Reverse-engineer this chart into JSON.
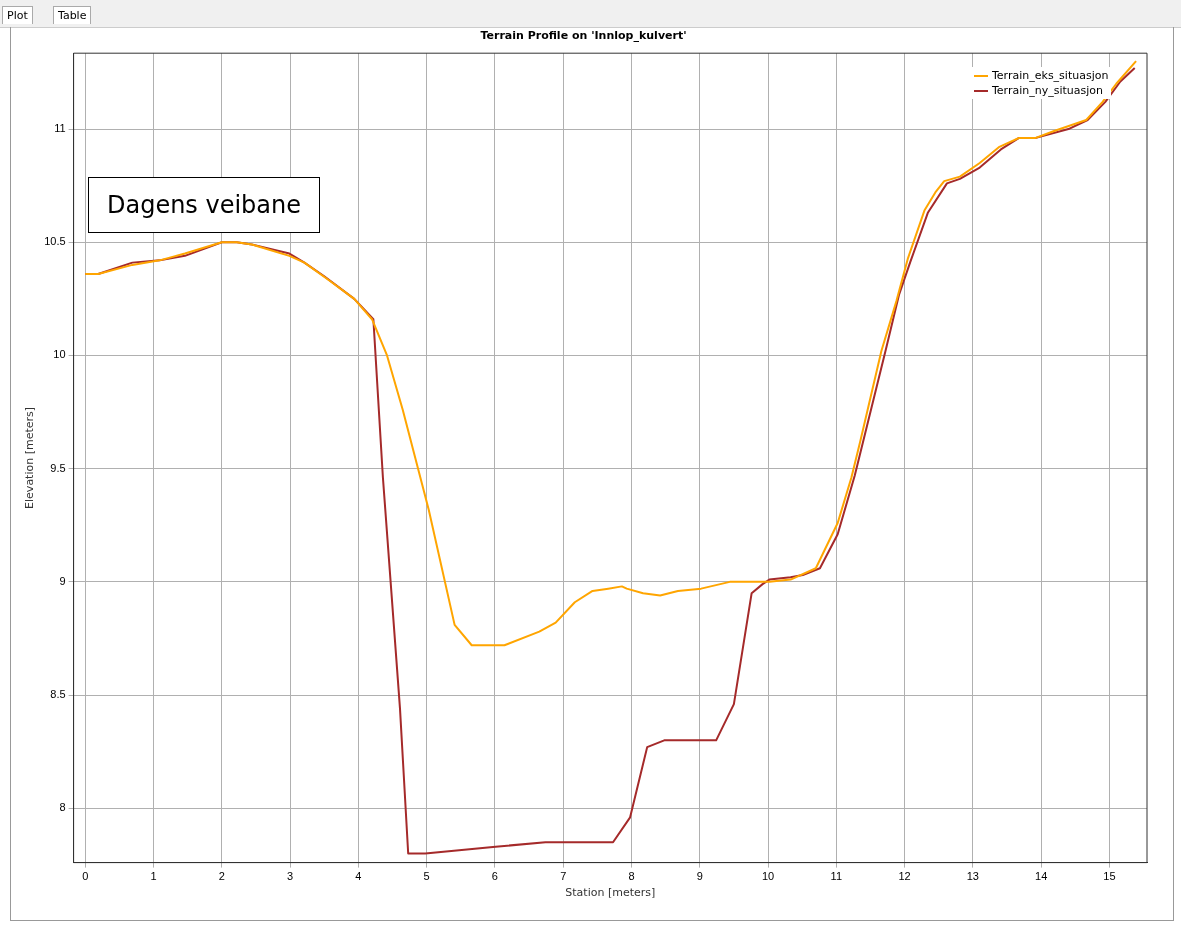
{
  "chart_data": {
    "type": "line",
    "title": "Terrain Profile on 'Innlop_kulvert'",
    "xlabel": "Station [meters]",
    "ylabel": "Elevation [meters]",
    "annotations": [
      "Plot",
      "Table",
      "Dagens veibane"
    ],
    "xlim": [
      -0.17,
      15.55
    ],
    "ylim": [
      7.76,
      11.335
    ],
    "xticks": [
      0,
      1,
      2,
      3,
      4,
      5,
      6,
      7,
      8,
      9,
      10,
      11,
      12,
      13,
      14,
      15
    ],
    "yticks": [
      8,
      8.5,
      9,
      9.5,
      10,
      10.5,
      11
    ],
    "grid": true,
    "legend": "top right",
    "marker": "none",
    "line_style": "solid",
    "series": [
      {
        "name": "Terrain_eks_situasjon",
        "color": "#ffa500",
        "x": [
          0,
          0.19,
          0.69,
          1.09,
          1.46,
          2.0,
          2.22,
          2.44,
          2.99,
          3.21,
          3.58,
          3.94,
          4.2,
          4.42,
          4.65,
          5.03,
          5.41,
          5.66,
          5.9,
          6.14,
          6.65,
          6.89,
          7.17,
          7.43,
          7.66,
          7.86,
          7.93,
          8.17,
          8.42,
          8.68,
          9.02,
          9.44,
          9.69,
          9.92,
          10.02,
          10.33,
          10.7,
          11.02,
          11.22,
          11.35,
          11.66,
          11.88,
          12.05,
          12.29,
          12.45,
          12.58,
          12.81,
          13.1,
          13.38,
          13.67,
          13.91,
          14.18,
          14.66,
          14.9,
          15.1,
          15.39
        ],
        "values": [
          10.36,
          10.36,
          10.4,
          10.42,
          10.45,
          10.5,
          10.5,
          10.49,
          10.44,
          10.41,
          10.33,
          10.25,
          10.16,
          10.0,
          9.76,
          9.32,
          8.81,
          8.72,
          8.72,
          8.72,
          8.78,
          8.82,
          8.91,
          8.96,
          8.97,
          8.98,
          8.97,
          8.95,
          8.94,
          8.96,
          8.97,
          9.0,
          9.0,
          9.0,
          9.0,
          9.01,
          9.06,
          9.26,
          9.46,
          9.62,
          10.02,
          10.24,
          10.43,
          10.64,
          10.72,
          10.77,
          10.79,
          10.85,
          10.92,
          10.96,
          10.96,
          10.99,
          11.04,
          11.12,
          11.2,
          11.3
        ]
      },
      {
        "name": "Terrain_ny_situasjon",
        "color": "#a52a2a",
        "x": [
          0,
          0.19,
          0.69,
          1.09,
          1.46,
          2.0,
          2.22,
          2.44,
          2.99,
          3.21,
          3.5,
          3.94,
          4.22,
          4.36,
          4.61,
          4.73,
          4.98,
          6.01,
          6.74,
          7.73,
          7.98,
          8.23,
          8.48,
          9.24,
          9.5,
          9.76,
          9.92,
          10.02,
          10.33,
          10.51,
          10.76,
          11.02,
          11.27,
          11.72,
          11.92,
          12.08,
          12.34,
          12.62,
          12.81,
          13.1,
          13.41,
          13.67,
          13.91,
          14.4,
          14.68,
          14.94,
          15.16,
          15.37
        ],
        "values": [
          10.36,
          10.36,
          10.41,
          10.42,
          10.44,
          10.5,
          10.5,
          10.49,
          10.45,
          10.41,
          10.35,
          10.25,
          10.16,
          9.46,
          8.44,
          7.8,
          7.8,
          7.83,
          7.85,
          7.85,
          7.96,
          8.27,
          8.3,
          8.3,
          8.46,
          8.95,
          8.99,
          9.01,
          9.02,
          9.03,
          9.06,
          9.21,
          9.47,
          10.02,
          10.27,
          10.41,
          10.63,
          10.76,
          10.78,
          10.83,
          10.91,
          10.96,
          10.96,
          11.0,
          11.04,
          11.12,
          11.21,
          11.27
        ]
      }
    ]
  }
}
